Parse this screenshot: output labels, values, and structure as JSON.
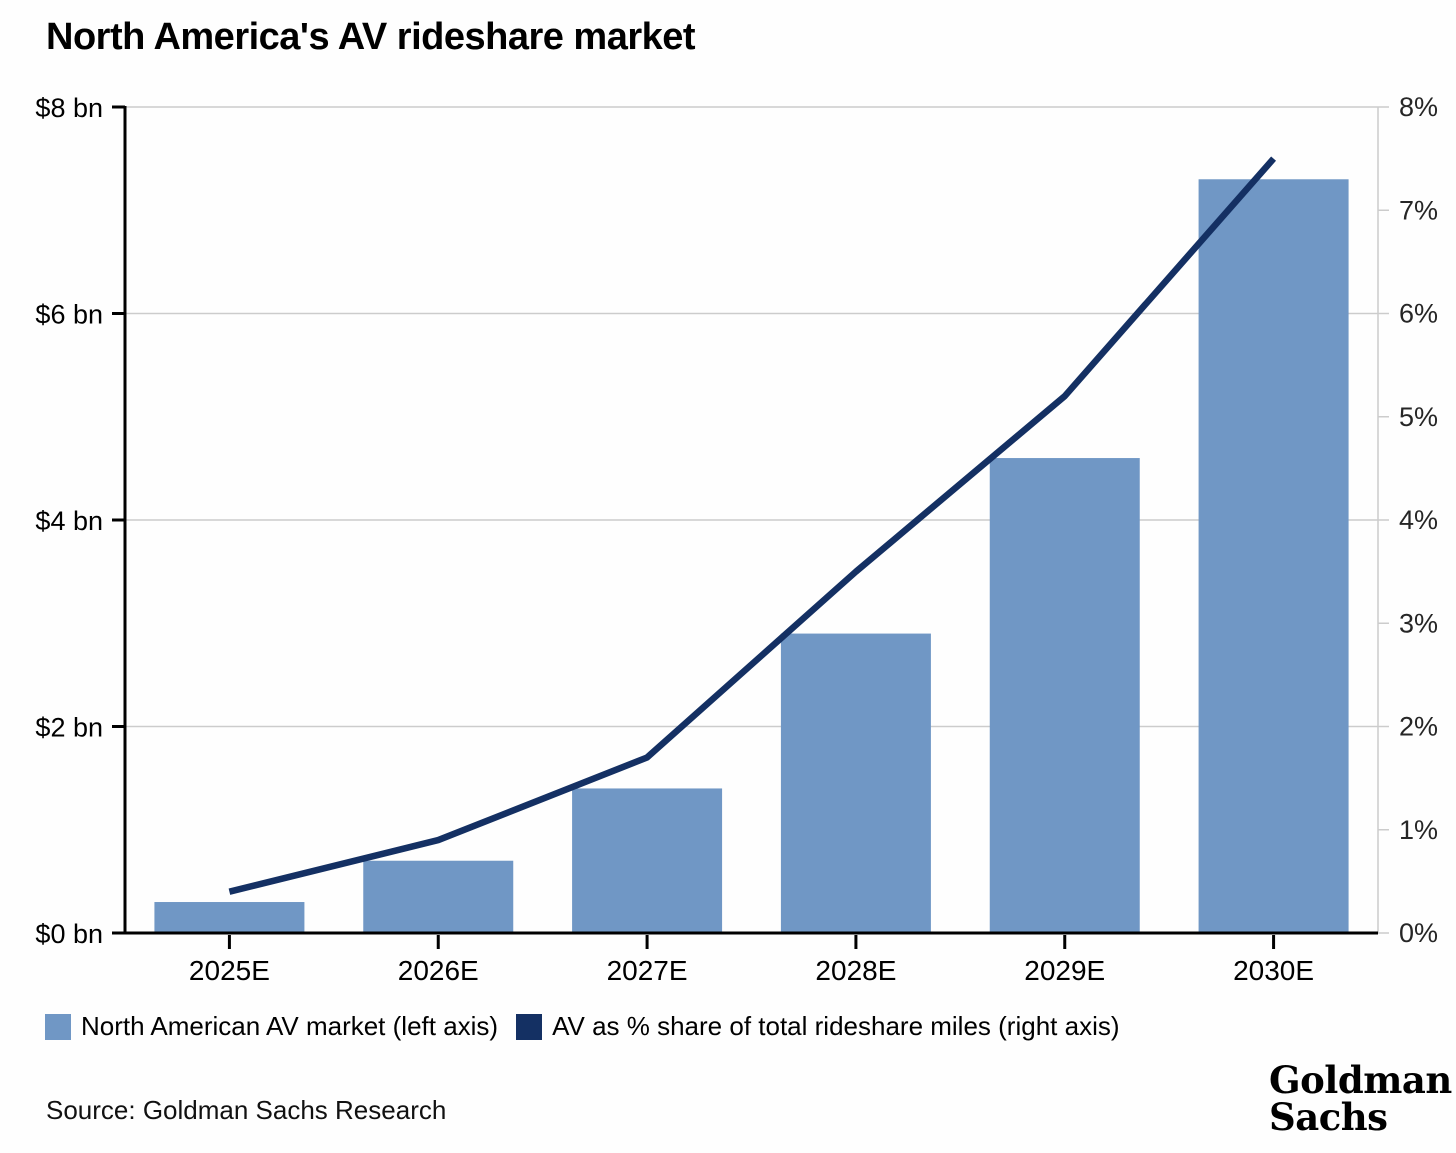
{
  "title": "North America's AV rideshare market",
  "source": "Source: Goldman Sachs Research",
  "logo": {
    "line1": "Goldman",
    "line2": "Sachs"
  },
  "legend": [
    {
      "label": "North American AV market (left axis)",
      "color": "#7097c5"
    },
    {
      "label": "AV as % share of total rideshare miles (right axis)",
      "color": "#143063"
    }
  ],
  "colors": {
    "bar": "#7097c5",
    "line": "#143063",
    "grid": "#cccccc",
    "axis": "#000000",
    "right_axis": "#cccccc",
    "label": "#1a1a1a"
  },
  "chart_data": {
    "type": "bar",
    "subtype": "bar+line combo, dual axis",
    "title": "North America's AV rideshare market",
    "categories": [
      "2025E",
      "2026E",
      "2027E",
      "2028E",
      "2029E",
      "2030E"
    ],
    "series": [
      {
        "name": "North American AV market (left axis)",
        "type": "bar",
        "axis": "left",
        "unit": "$ bn",
        "values": [
          0.3,
          0.7,
          1.4,
          2.9,
          4.6,
          7.3
        ]
      },
      {
        "name": "AV as % share of total rideshare miles (right axis)",
        "type": "line",
        "axis": "right",
        "unit": "%",
        "values": [
          0.4,
          0.9,
          1.7,
          3.5,
          5.2,
          7.5
        ]
      }
    ],
    "left_axis": {
      "tick_labels": [
        "$0 bn",
        "$2 bn",
        "$4 bn",
        "$6 bn",
        "$8 bn"
      ],
      "tick_values": [
        0,
        2,
        4,
        6,
        8
      ],
      "min": 0,
      "max": 8
    },
    "right_axis": {
      "tick_labels": [
        "0%",
        "1%",
        "2%",
        "3%",
        "4%",
        "5%",
        "6%",
        "7%",
        "8%"
      ],
      "tick_values": [
        0,
        1,
        2,
        3,
        4,
        5,
        6,
        7,
        8
      ],
      "min": 0,
      "max": 8
    },
    "gridlines_at": [
      2,
      4,
      6,
      8
    ],
    "grid": true,
    "legend_position": "bottom"
  }
}
